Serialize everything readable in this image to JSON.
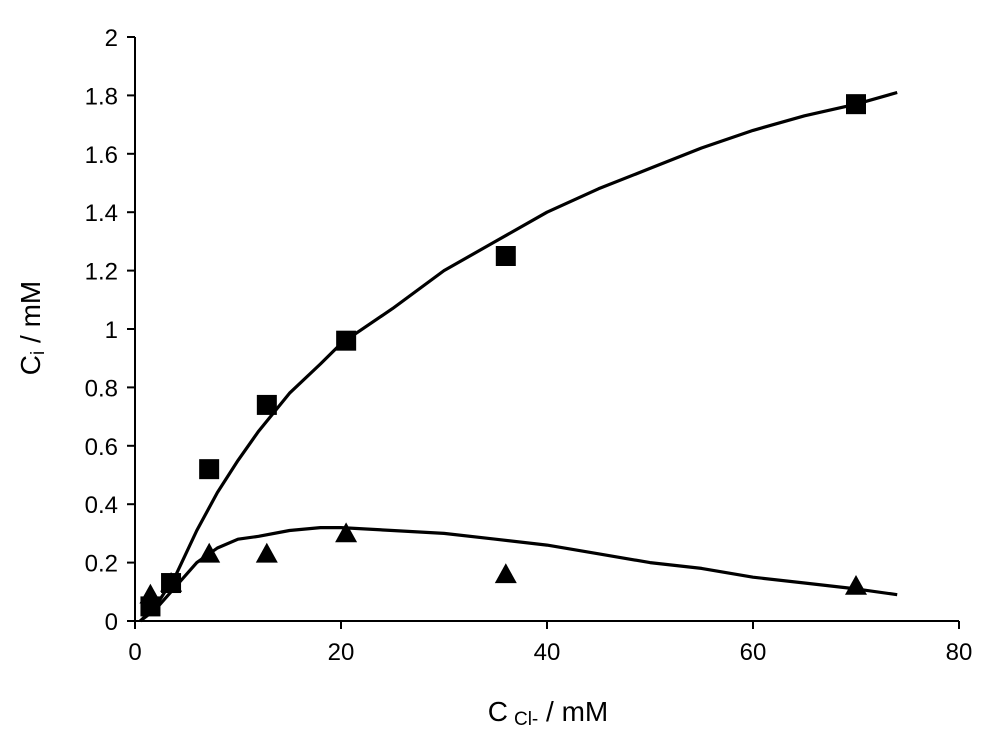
{
  "chart_data": {
    "type": "scatter",
    "title": "",
    "xlabel": {
      "main": "C",
      "sub": "Cl-",
      "unit": " / mM"
    },
    "ylabel": {
      "main": "C",
      "sub": "i",
      "unit": " / mM"
    },
    "xlim": [
      0,
      80
    ],
    "ylim": [
      0,
      2
    ],
    "xticks": [
      "0",
      "20",
      "40",
      "60",
      "80"
    ],
    "yticks": [
      "0",
      "0.2",
      "0.4",
      "0.6",
      "0.8",
      "1",
      "1.2",
      "1.4",
      "1.6",
      "1.8",
      "2"
    ],
    "grid": false,
    "legend": "none",
    "series": [
      {
        "marker": "square",
        "color": "#000000",
        "points": [
          {
            "x": 1.5,
            "y": 0.05
          },
          {
            "x": 3.5,
            "y": 0.13
          },
          {
            "x": 7.2,
            "y": 0.52
          },
          {
            "x": 12.8,
            "y": 0.74
          },
          {
            "x": 20.5,
            "y": 0.96
          },
          {
            "x": 36.0,
            "y": 1.25
          },
          {
            "x": 70.0,
            "y": 1.77
          }
        ],
        "fit": [
          {
            "x": 0.5,
            "y": 0.0
          },
          {
            "x": 2,
            "y": 0.05
          },
          {
            "x": 4,
            "y": 0.16
          },
          {
            "x": 6,
            "y": 0.31
          },
          {
            "x": 8,
            "y": 0.44
          },
          {
            "x": 10,
            "y": 0.55
          },
          {
            "x": 12,
            "y": 0.65
          },
          {
            "x": 15,
            "y": 0.78
          },
          {
            "x": 18,
            "y": 0.88
          },
          {
            "x": 20,
            "y": 0.95
          },
          {
            "x": 25,
            "y": 1.07
          },
          {
            "x": 30,
            "y": 1.2
          },
          {
            "x": 35,
            "y": 1.3
          },
          {
            "x": 40,
            "y": 1.4
          },
          {
            "x": 45,
            "y": 1.48
          },
          {
            "x": 50,
            "y": 1.55
          },
          {
            "x": 55,
            "y": 1.62
          },
          {
            "x": 60,
            "y": 1.68
          },
          {
            "x": 65,
            "y": 1.73
          },
          {
            "x": 70,
            "y": 1.77
          },
          {
            "x": 74,
            "y": 1.81
          }
        ]
      },
      {
        "marker": "triangle",
        "color": "#000000",
        "points": [
          {
            "x": 1.5,
            "y": 0.09
          },
          {
            "x": 3.5,
            "y": 0.13
          },
          {
            "x": 7.2,
            "y": 0.23
          },
          {
            "x": 12.8,
            "y": 0.23
          },
          {
            "x": 20.5,
            "y": 0.3
          },
          {
            "x": 36.0,
            "y": 0.16
          },
          {
            "x": 70.0,
            "y": 0.12
          }
        ],
        "fit": [
          {
            "x": 0.5,
            "y": 0.0
          },
          {
            "x": 2,
            "y": 0.04
          },
          {
            "x": 4,
            "y": 0.12
          },
          {
            "x": 6,
            "y": 0.2
          },
          {
            "x": 8,
            "y": 0.25
          },
          {
            "x": 10,
            "y": 0.28
          },
          {
            "x": 12,
            "y": 0.29
          },
          {
            "x": 15,
            "y": 0.31
          },
          {
            "x": 18,
            "y": 0.32
          },
          {
            "x": 20,
            "y": 0.32
          },
          {
            "x": 25,
            "y": 0.31
          },
          {
            "x": 30,
            "y": 0.3
          },
          {
            "x": 35,
            "y": 0.28
          },
          {
            "x": 40,
            "y": 0.26
          },
          {
            "x": 45,
            "y": 0.23
          },
          {
            "x": 50,
            "y": 0.2
          },
          {
            "x": 55,
            "y": 0.18
          },
          {
            "x": 60,
            "y": 0.15
          },
          {
            "x": 65,
            "y": 0.13
          },
          {
            "x": 70,
            "y": 0.11
          },
          {
            "x": 74,
            "y": 0.09
          }
        ]
      }
    ]
  }
}
